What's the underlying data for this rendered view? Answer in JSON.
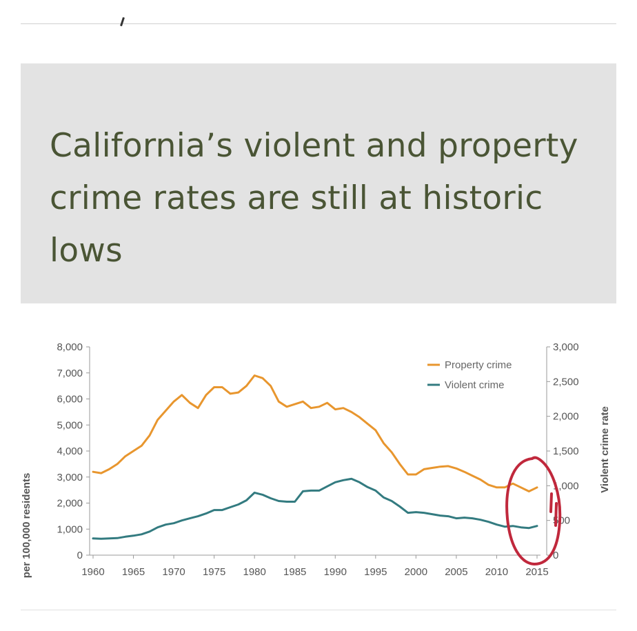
{
  "title": "California’s violent and property crime rates are still at historic lows",
  "chart_data": {
    "type": "line",
    "x": [
      1960,
      1961,
      1962,
      1963,
      1964,
      1965,
      1966,
      1967,
      1968,
      1969,
      1970,
      1971,
      1972,
      1973,
      1974,
      1975,
      1976,
      1977,
      1978,
      1979,
      1980,
      1981,
      1982,
      1983,
      1984,
      1985,
      1986,
      1987,
      1988,
      1989,
      1990,
      1991,
      1992,
      1993,
      1994,
      1995,
      1996,
      1997,
      1998,
      1999,
      2000,
      2001,
      2002,
      2003,
      2004,
      2005,
      2006,
      2007,
      2008,
      2009,
      2010,
      2011,
      2012,
      2013,
      2014,
      2015
    ],
    "x_ticks": [
      "1960",
      "1965",
      "1970",
      "1975",
      "1980",
      "1985",
      "1990",
      "1995",
      "2000",
      "2005",
      "2010",
      "2015"
    ],
    "xlim": [
      1960,
      2015
    ],
    "ylabel_left": "per 100,000 residents",
    "ylabel_right": "Violent crime rate",
    "ylim_left": [
      0,
      8000
    ],
    "ylim_right": [
      0,
      3000
    ],
    "y_ticks_left": [
      "0",
      "1,000",
      "2,000",
      "3,000",
      "4,000",
      "5,000",
      "6,000",
      "7,000",
      "8,000"
    ],
    "y_ticks_right": [
      "0",
      "500",
      "1,000",
      "1,500",
      "2,000",
      "2,500",
      "3,000"
    ],
    "legend_position": "top-right",
    "grid": false,
    "series": [
      {
        "name": "Property crime",
        "axis": "left",
        "color": "#e8962e",
        "values": [
          3200,
          3150,
          3300,
          3500,
          3800,
          4000,
          4200,
          4600,
          5200,
          5550,
          5900,
          6150,
          5850,
          5650,
          6150,
          6450,
          6450,
          6200,
          6250,
          6500,
          6900,
          6800,
          6500,
          5900,
          5700,
          5800,
          5900,
          5650,
          5700,
          5850,
          5600,
          5650,
          5500,
          5300,
          5050,
          4800,
          4300,
          3950,
          3500,
          3100,
          3100,
          3300,
          3350,
          3400,
          3420,
          3330,
          3200,
          3050,
          2900,
          2700,
          2600,
          2600,
          2750,
          2600,
          2450,
          2600
        ]
      },
      {
        "name": "Violent crime",
        "axis": "right",
        "color": "#337b80",
        "values": [
          240,
          235,
          240,
          245,
          265,
          280,
          300,
          340,
          400,
          440,
          460,
          500,
          530,
          560,
          600,
          650,
          650,
          690,
          730,
          790,
          900,
          870,
          820,
          780,
          770,
          770,
          920,
          930,
          930,
          990,
          1050,
          1080,
          1100,
          1050,
          980,
          930,
          830,
          780,
          700,
          610,
          620,
          610,
          590,
          570,
          560,
          530,
          540,
          530,
          510,
          480,
          440,
          410,
          420,
          400,
          390,
          420
        ]
      }
    ]
  }
}
